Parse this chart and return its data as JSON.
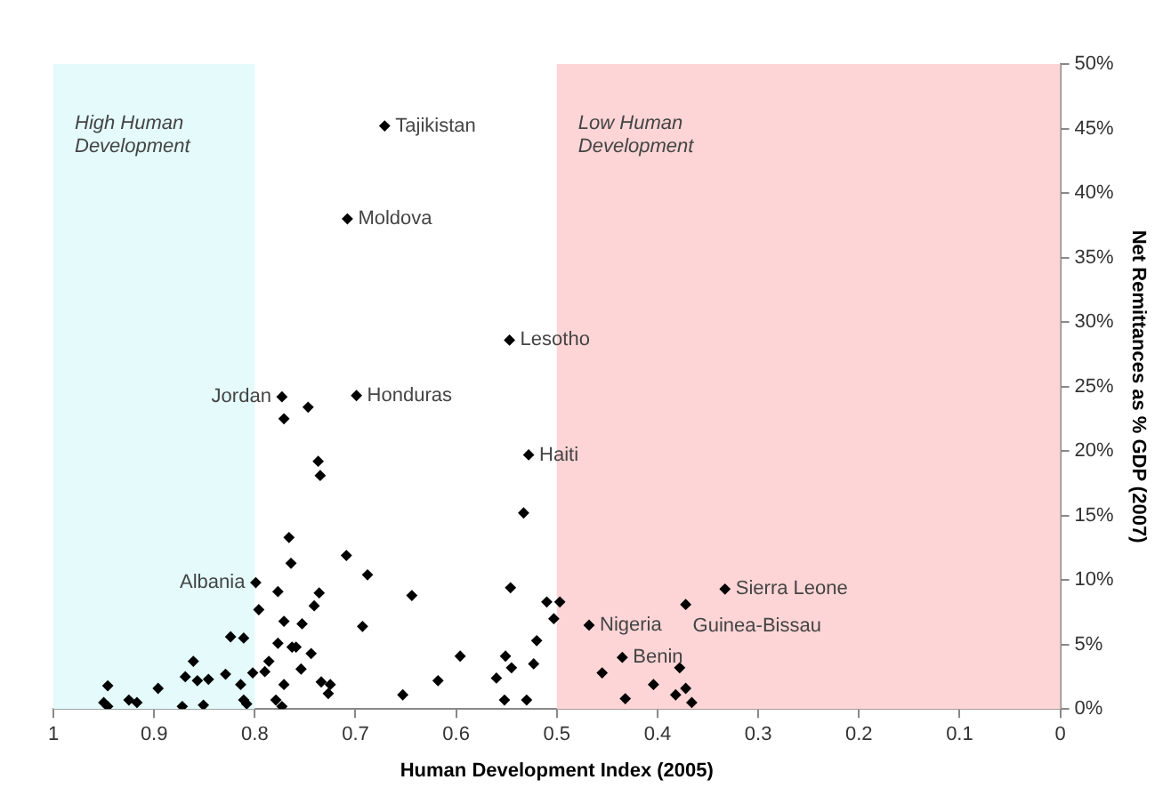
{
  "chart_data": {
    "type": "scatter",
    "xlabel": "Human Development Index (2005)",
    "ylabel": "Net Remittances as % GDP (2007)",
    "xlim": [
      1,
      0
    ],
    "xticks": [
      1,
      0.9,
      0.8,
      0.7,
      0.6,
      0.5,
      0.4,
      0.3,
      0.2,
      0.1,
      0
    ],
    "ylim": [
      0,
      50
    ],
    "yticks": [
      {
        "value": 0,
        "label": "0%"
      },
      {
        "value": 5,
        "label": "5%"
      },
      {
        "value": 10,
        "label": "10%"
      },
      {
        "value": 15,
        "label": "15%"
      },
      {
        "value": 20,
        "label": "20%"
      },
      {
        "value": 25,
        "label": "25%"
      },
      {
        "value": 30,
        "label": "30%"
      },
      {
        "value": 35,
        "label": "35%"
      },
      {
        "value": 40,
        "label": "40%"
      },
      {
        "value": 45,
        "label": "45%"
      },
      {
        "value": 50,
        "label": "50%"
      }
    ],
    "grid": false,
    "legend": false,
    "marker": "diamond",
    "bands": [
      {
        "axis": "x",
        "from": 1,
        "to": 0.8,
        "label": "High Human Development",
        "color": "#e4fafb"
      },
      {
        "axis": "x",
        "from": 0.5,
        "to": 0,
        "label": "Low Human Development",
        "color": "#fdd5d6"
      }
    ],
    "series": [
      {
        "color": "#000000",
        "x": [
          0.671,
          0.708,
          0.547,
          0.699,
          0.773,
          0.747,
          0.771,
          0.528,
          0.737,
          0.735,
          0.533,
          0.766,
          0.764,
          0.799,
          0.777,
          0.709,
          0.688,
          0.736,
          0.796,
          0.771,
          0.753,
          0.741,
          0.693,
          0.824,
          0.811,
          0.777,
          0.763,
          0.759,
          0.744,
          0.786,
          0.754,
          0.861,
          0.869,
          0.857,
          0.846,
          0.829,
          0.814,
          0.802,
          0.79,
          0.771,
          0.734,
          0.725,
          0.727,
          0.946,
          0.896,
          0.925,
          0.917,
          0.95,
          0.946,
          0.872,
          0.851,
          0.811,
          0.808,
          0.779,
          0.773,
          0.644,
          0.546,
          0.51,
          0.497,
          0.503,
          0.468,
          0.52,
          0.596,
          0.551,
          0.545,
          0.523,
          0.56,
          0.618,
          0.653,
          0.552,
          0.53,
          0.455,
          0.435,
          0.432,
          0.333,
          0.372,
          0.404,
          0.378,
          0.372,
          0.382,
          0.366
        ],
        "values": [
          45.2,
          38.0,
          28.6,
          24.3,
          24.2,
          23.4,
          22.5,
          19.7,
          19.2,
          18.1,
          15.2,
          13.3,
          11.3,
          9.8,
          9.1,
          11.9,
          10.4,
          9.0,
          7.7,
          6.8,
          6.6,
          8.0,
          6.4,
          5.6,
          5.5,
          5.1,
          4.8,
          4.8,
          4.3,
          3.7,
          3.1,
          3.7,
          2.5,
          2.2,
          2.3,
          2.7,
          1.9,
          2.8,
          2.9,
          1.9,
          2.1,
          1.9,
          1.2,
          1.8,
          1.6,
          0.7,
          0.5,
          0.5,
          0.2,
          0.2,
          0.3,
          0.7,
          0.4,
          0.7,
          0.2,
          8.8,
          9.4,
          8.3,
          8.3,
          7.0,
          6.5,
          5.3,
          4.1,
          4.1,
          3.2,
          3.5,
          2.4,
          2.2,
          1.1,
          0.7,
          0.7,
          2.8,
          4.0,
          0.8,
          9.3,
          8.1,
          1.9,
          3.2,
          1.6,
          1.1,
          0.5
        ]
      }
    ],
    "annotations": [
      {
        "text": "Tajikistan",
        "x": 0.671,
        "y": 45.2
      },
      {
        "text": "Moldova",
        "x": 0.708,
        "y": 38.0
      },
      {
        "text": "Lesotho",
        "x": 0.547,
        "y": 28.6
      },
      {
        "text": "Jordan",
        "x": 0.773,
        "y": 24.2
      },
      {
        "text": "Honduras",
        "x": 0.699,
        "y": 24.3
      },
      {
        "text": "Haiti",
        "x": 0.528,
        "y": 19.7
      },
      {
        "text": "Albania",
        "x": 0.799,
        "y": 9.8
      },
      {
        "text": "Nigeria",
        "x": 0.468,
        "y": 6.5
      },
      {
        "text": "Benin",
        "x": 0.435,
        "y": 4.0
      },
      {
        "text": "Sierra Leone",
        "x": 0.333,
        "y": 9.3
      },
      {
        "text": "Guinea-Bissau",
        "x": 0.372,
        "y": 8.1
      }
    ]
  }
}
